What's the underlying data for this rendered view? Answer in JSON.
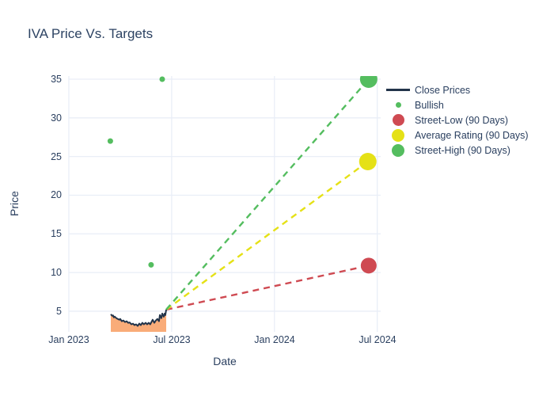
{
  "chart_data": {
    "type": "line",
    "title": "IVA Price Vs. Targets",
    "xlabel": "Date",
    "ylabel": "Price",
    "x_ticks": [
      "Jan 2023",
      "Jul 2023",
      "Jan 2024",
      "Jul 2024"
    ],
    "x_tick_months": [
      0,
      6,
      12,
      18
    ],
    "y_ticks": [
      35,
      30,
      25,
      20,
      15,
      10,
      5
    ],
    "xlim_months": [
      0,
      18.2
    ],
    "ylim": [
      2.33,
      35.41
    ],
    "grid": true,
    "legend_position": "right",
    "colors": {
      "text": "#2a3f5f",
      "grid": "#e9eef7",
      "close_line": "#22344a",
      "close_fill": "#f9ac79",
      "bullish": "#54bd5f",
      "street_low": "#cf4a52",
      "average": "#e5e116",
      "street_high": "#54bd5f",
      "background": "#ffffff"
    },
    "close_prices": {
      "name": "Close Prices",
      "note": "months are offsets from Jan 2023; data spans mid-Mar 2023 to mid-Jun 2023",
      "points": [
        [
          2.45,
          4.6
        ],
        [
          2.49,
          4.5
        ],
        [
          2.54,
          4.4
        ],
        [
          2.58,
          4.45
        ],
        [
          2.63,
          4.2
        ],
        [
          2.68,
          4.3
        ],
        [
          2.77,
          4.1
        ],
        [
          2.86,
          4.0
        ],
        [
          2.95,
          3.9
        ],
        [
          3.0,
          4.0
        ],
        [
          3.09,
          3.7
        ],
        [
          3.18,
          3.8
        ],
        [
          3.28,
          3.6
        ],
        [
          3.37,
          3.7
        ],
        [
          3.46,
          3.5
        ],
        [
          3.55,
          3.55
        ],
        [
          3.65,
          3.3
        ],
        [
          3.74,
          3.4
        ],
        [
          3.83,
          3.2
        ],
        [
          3.92,
          3.3
        ],
        [
          4.02,
          3.1
        ],
        [
          4.11,
          3.4
        ],
        [
          4.2,
          3.2
        ],
        [
          4.29,
          3.5
        ],
        [
          4.38,
          3.3
        ],
        [
          4.48,
          3.5
        ],
        [
          4.57,
          3.3
        ],
        [
          4.66,
          3.5
        ],
        [
          4.75,
          3.3
        ],
        [
          4.89,
          3.9
        ],
        [
          4.99,
          3.5
        ],
        [
          5.08,
          3.8
        ],
        [
          5.17,
          4.0
        ],
        [
          5.26,
          3.7
        ],
        [
          5.31,
          4.5
        ],
        [
          5.4,
          4.1
        ],
        [
          5.45,
          4.7
        ],
        [
          5.54,
          4.3
        ],
        [
          5.59,
          4.7
        ],
        [
          5.63,
          4.5
        ],
        [
          5.68,
          5.2
        ]
      ]
    },
    "bullish_markers": {
      "name": "Bullish",
      "radius": 3.5,
      "points": [
        [
          2.42,
          27.0
        ],
        [
          4.8,
          11.0
        ],
        [
          5.45,
          35.0
        ]
      ]
    },
    "trend_start": {
      "month": 5.68,
      "price": 5.2
    },
    "targets": [
      {
        "key": "street_low",
        "name": "Street-Low (90 Days)",
        "month": 17.5,
        "price": 10.9,
        "radius": 10
      },
      {
        "key": "average",
        "name": "Average Rating (90 Days)",
        "month": 17.45,
        "price": 24.35,
        "radius": 11
      },
      {
        "key": "street_high",
        "name": "Street-High (90 Days)",
        "month": 17.5,
        "price": 35.0,
        "radius": 11
      }
    ],
    "legend": [
      {
        "label": "Close Prices",
        "swatch": "line",
        "color_key": "close_line",
        "size": 30
      },
      {
        "label": "Bullish",
        "swatch": "dot",
        "color_key": "bullish",
        "size": 7
      },
      {
        "label": "Street-Low (90 Days)",
        "swatch": "dot",
        "color_key": "street_low",
        "size": 15
      },
      {
        "label": "Average Rating (90 Days)",
        "swatch": "dot",
        "color_key": "average",
        "size": 16
      },
      {
        "label": "Street-High (90 Days)",
        "swatch": "dot",
        "color_key": "street_high",
        "size": 16
      }
    ]
  }
}
